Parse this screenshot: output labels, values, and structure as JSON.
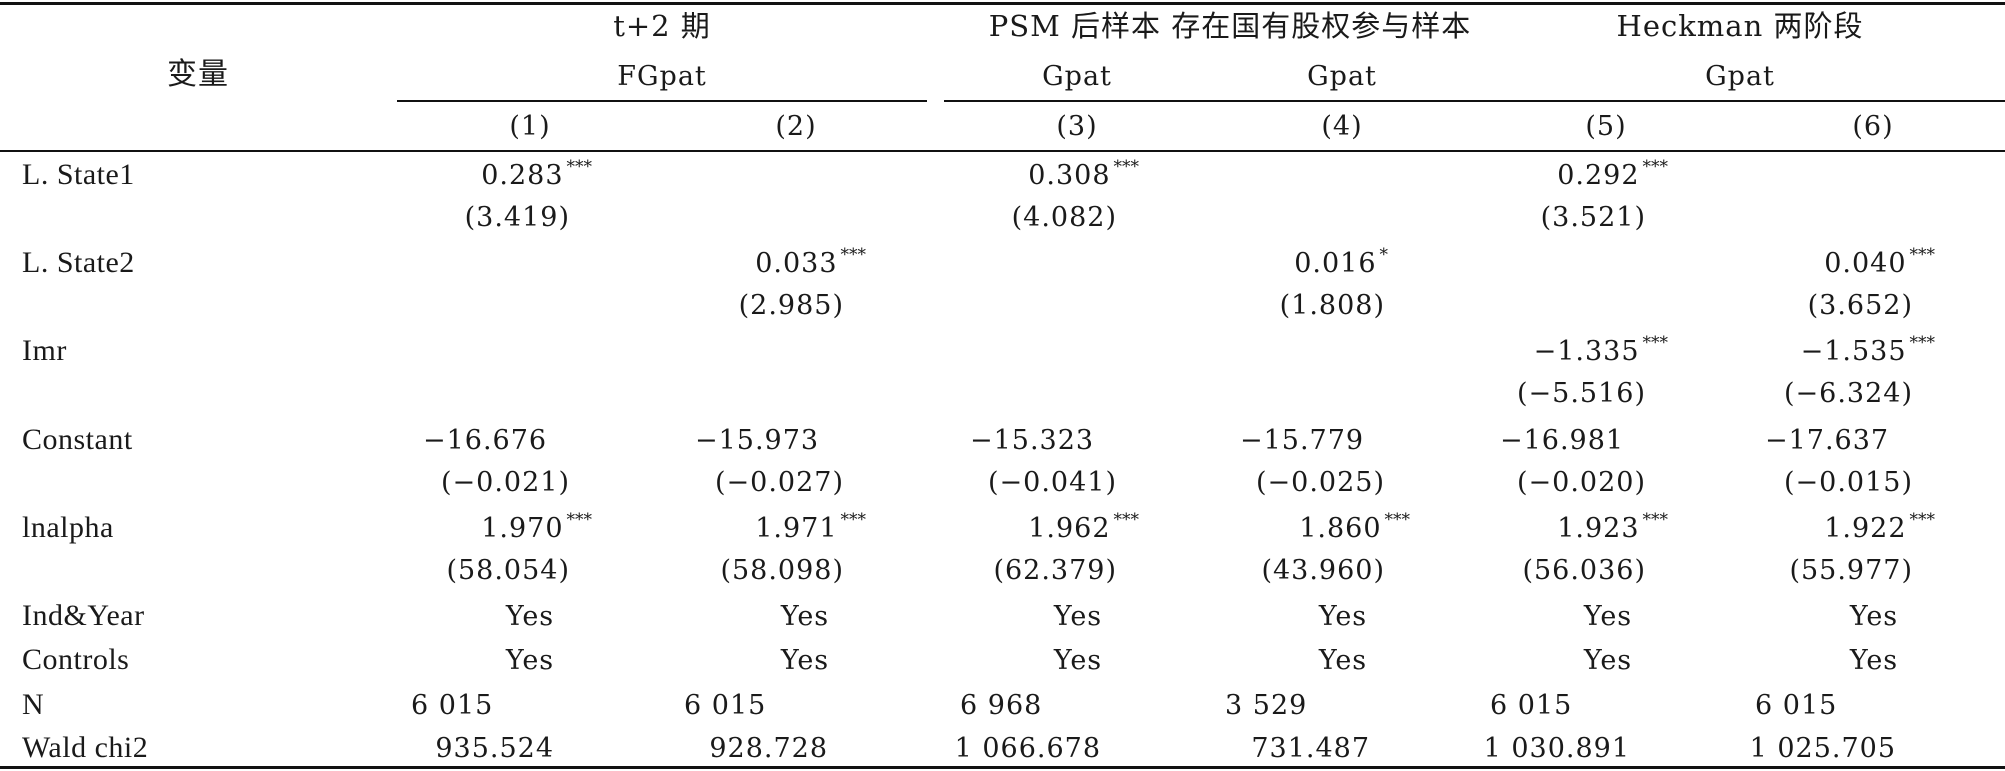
{
  "header": {
    "variable_label": "变量",
    "groups": [
      "t+2 期",
      "PSM 后样本 存在国有股权参与样本",
      "Heckman 两阶段"
    ],
    "depvars": [
      "FGpat",
      "Gpat",
      "Gpat",
      "Gpat"
    ],
    "columns": [
      "(1)",
      "(2)",
      "(3)",
      "(4)",
      "(5)",
      "(6)"
    ]
  },
  "rows": {
    "state1": {
      "label": "L. State1",
      "coef": [
        "0.283",
        "",
        "0.308",
        "",
        "0.292",
        ""
      ],
      "stars": [
        "***",
        "",
        "***",
        "",
        "***",
        ""
      ],
      "z": [
        "(3.419)",
        "",
        "(4.082)",
        "",
        "(3.521)",
        ""
      ]
    },
    "state2": {
      "label": "L. State2",
      "coef": [
        "",
        "0.033",
        "",
        "0.016",
        "",
        "0.040"
      ],
      "stars": [
        "",
        "***",
        "",
        "*",
        "",
        "***"
      ],
      "z": [
        "",
        "(2.985)",
        "",
        "(1.808)",
        "",
        "(3.652)"
      ]
    },
    "imr": {
      "label": "Imr",
      "coef": [
        "",
        "",
        "",
        "",
        "−1.335",
        "−1.535"
      ],
      "stars": [
        "",
        "",
        "",
        "",
        "***",
        "***"
      ],
      "z": [
        "",
        "",
        "",
        "",
        "(−5.516)",
        "(−6.324)"
      ]
    },
    "constant": {
      "label": "Constant",
      "coef": [
        "−16.676",
        "−15.973",
        "−15.323",
        "−15.779",
        "−16.981",
        "−17.637"
      ],
      "z": [
        "(−0.021)",
        "(−0.027)",
        "(−0.041)",
        "(−0.025)",
        "(−0.020)",
        "(−0.015)"
      ]
    },
    "lnalpha": {
      "label": "lnalpha",
      "coef": [
        "1.970",
        "1.971",
        "1.962",
        "1.860",
        "1.923",
        "1.922"
      ],
      "stars": [
        "***",
        "***",
        "***",
        "***",
        "***",
        "***"
      ],
      "z": [
        "(58.054)",
        "(58.098)",
        "(62.379)",
        "(43.960)",
        "(56.036)",
        "(55.977)"
      ]
    },
    "indyear": {
      "label": "Ind&Year",
      "values": [
        "Yes",
        "Yes",
        "Yes",
        "Yes",
        "Yes",
        "Yes"
      ]
    },
    "controls": {
      "label": "Controls",
      "values": [
        "Yes",
        "Yes",
        "Yes",
        "Yes",
        "Yes",
        "Yes"
      ]
    },
    "n": {
      "label": "N",
      "values": [
        "6 015",
        "6 015",
        "6 968",
        "3 529",
        "6 015",
        "6 015"
      ]
    },
    "wald": {
      "label": "Wald chi2",
      "values": [
        "935.524",
        "928.728",
        "1 066.678",
        "731.487",
        "1 030.891",
        "1 025.705"
      ]
    }
  }
}
